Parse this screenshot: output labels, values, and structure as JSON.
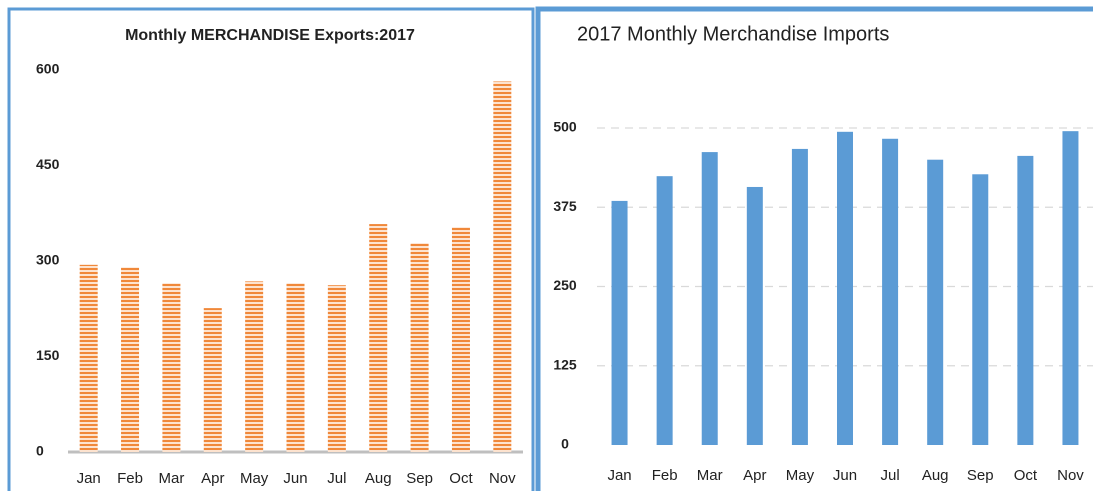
{
  "chart_data": [
    {
      "type": "bar",
      "title": "Monthly MERCHANDISE Exports:2017",
      "categories": [
        "Jan",
        "Feb",
        "Mar",
        "Apr",
        "May",
        "Jun",
        "Jul",
        "Aug",
        "Sep",
        "Oct",
        "Nov"
      ],
      "values": [
        294,
        290,
        265,
        226,
        268,
        265,
        262,
        358,
        328,
        353,
        582
      ],
      "color": "#f0883a",
      "pattern": "striped",
      "ylim": [
        0,
        600
      ],
      "yticks": [
        0,
        150,
        300,
        450,
        600
      ],
      "grid": false
    },
    {
      "type": "bar",
      "title": "2017 Monthly Merchandise Imports",
      "categories": [
        "Jan",
        "Feb",
        "Mar",
        "Apr",
        "May",
        "Jun",
        "Jul",
        "Aug",
        "Sep",
        "Oct",
        "Nov"
      ],
      "values": [
        385,
        424,
        462,
        407,
        467,
        494,
        483,
        450,
        427,
        456,
        495
      ],
      "color": "#5b9bd5",
      "ylim": [
        0,
        500
      ],
      "yticks": [
        0,
        125,
        250,
        375,
        500
      ],
      "grid": true
    }
  ]
}
